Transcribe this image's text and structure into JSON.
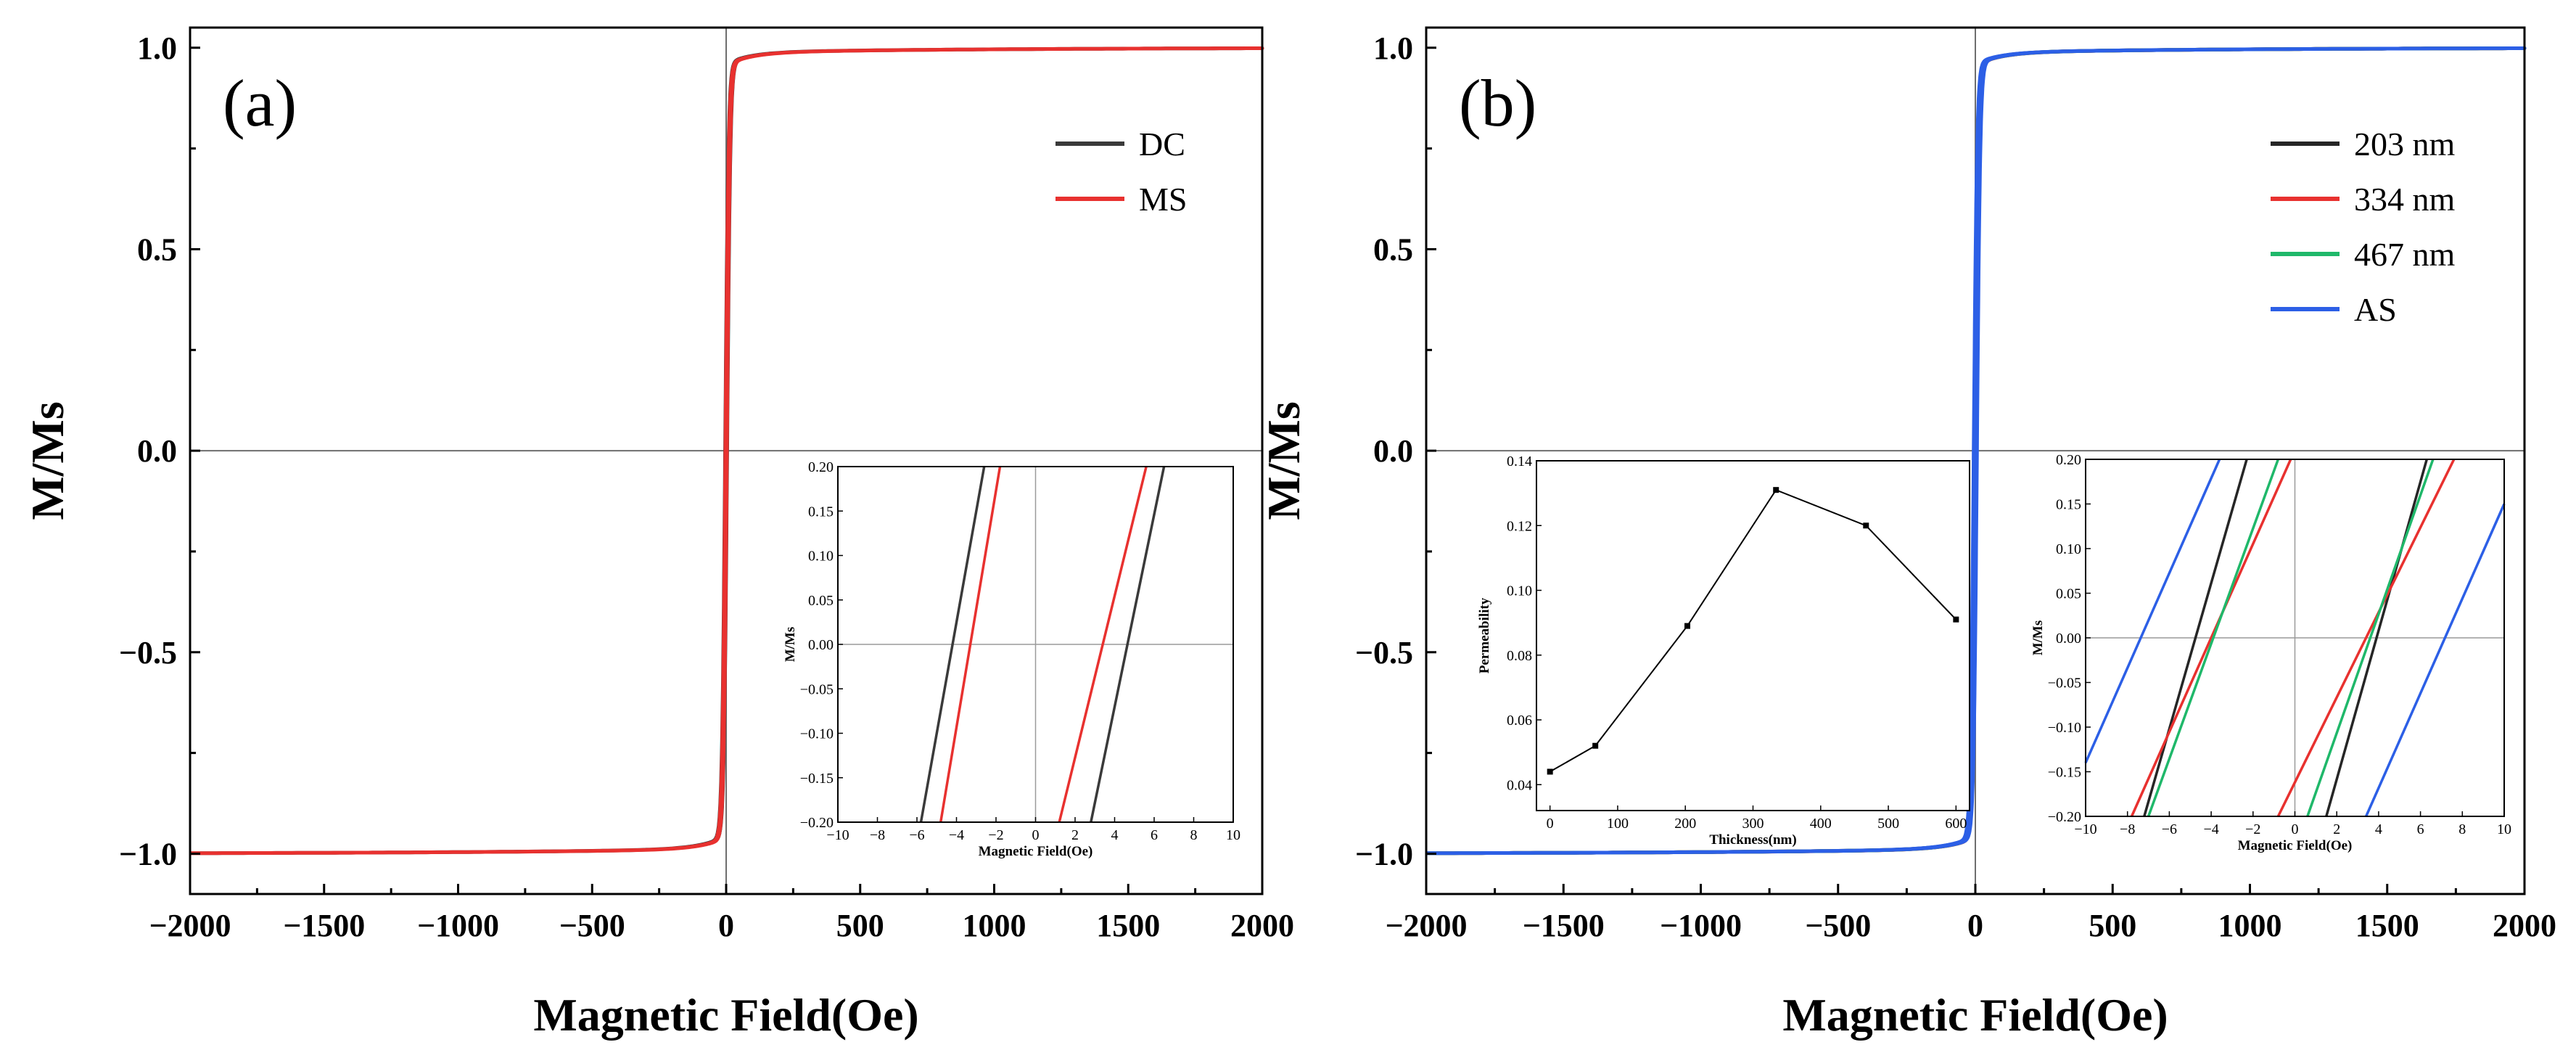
{
  "chart_data": [
    {
      "type": "line",
      "panel": "(a)",
      "xlabel": "Magnetic Field(Oe)",
      "ylabel": "M/Ms",
      "xlim": [
        -2000,
        2000
      ],
      "ylim": [
        -1.1,
        1.05
      ],
      "xticks": [
        -2000,
        -1500,
        -1000,
        -500,
        0,
        500,
        1000,
        1500,
        2000
      ],
      "xtick_labels": [
        "−2000",
        "−1500",
        "−1000",
        "−500",
        "0",
        "500",
        "1000",
        "1500",
        "2000"
      ],
      "yticks": [
        -1.0,
        -0.5,
        0.0,
        0.5,
        1.0
      ],
      "ytick_labels": [
        "−1.0",
        "−0.5",
        "0.0",
        "0.5",
        "1.0"
      ],
      "legend_position": "top-right",
      "series": [
        {
          "name": "DC",
          "color": "#3a3a3a",
          "hc": 3.8,
          "shift": 0.2
        },
        {
          "name": "MS",
          "color": "#e8312f",
          "hc": 2.9,
          "shift": -0.2
        }
      ],
      "inset": {
        "type": "line",
        "xlabel": "Magnetic Field(Oe)",
        "ylabel": "M/Ms",
        "xlim": [
          -10,
          10
        ],
        "ylim": [
          -0.2,
          0.2
        ],
        "xticks": [
          -10,
          -8,
          -6,
          -4,
          -2,
          0,
          2,
          4,
          6,
          8,
          10
        ],
        "xtick_labels": [
          "−10",
          "−8",
          "−6",
          "−4",
          "−2",
          "0",
          "2",
          "4",
          "6",
          "8",
          "10"
        ],
        "yticks": [
          -0.2,
          -0.15,
          -0.1,
          -0.05,
          0.0,
          0.05,
          0.1,
          0.15,
          0.2
        ],
        "ytick_labels": [
          "−0.20",
          "−0.15",
          "−0.10",
          "−0.05",
          "0.00",
          "0.05",
          "0.10",
          "0.15",
          "0.20"
        ],
        "series": [
          {
            "name": "DC",
            "color": "#3a3a3a",
            "segments": [
              [
                [
                  -5.8,
                  -0.2
                ],
                [
                  -2.6,
                  0.2
                ]
              ],
              [
                [
                  2.8,
                  -0.2
                ],
                [
                  6.5,
                  0.2
                ]
              ]
            ]
          },
          {
            "name": "MS",
            "color": "#e8312f",
            "segments": [
              [
                [
                  -4.8,
                  -0.2
                ],
                [
                  -1.8,
                  0.2
                ]
              ],
              [
                [
                  1.2,
                  -0.2
                ],
                [
                  5.6,
                  0.2
                ]
              ]
            ]
          }
        ]
      }
    },
    {
      "type": "line",
      "panel": "(b)",
      "xlabel": "Magnetic Field(Oe)",
      "ylabel": "M/Ms",
      "xlim": [
        -2000,
        2000
      ],
      "ylim": [
        -1.1,
        1.05
      ],
      "xticks": [
        -2000,
        -1500,
        -1000,
        -500,
        0,
        500,
        1000,
        1500,
        2000
      ],
      "xtick_labels": [
        "−2000",
        "−1500",
        "−1000",
        "−500",
        "0",
        "500",
        "1000",
        "1500",
        "2000"
      ],
      "yticks": [
        -1.0,
        -0.5,
        0.0,
        0.5,
        1.0
      ],
      "ytick_labels": [
        "−1.0",
        "−0.5",
        "0.0",
        "0.5",
        "1.0"
      ],
      "legend_position": "top-right",
      "series": [
        {
          "name": "203 nm",
          "color": "#262626",
          "hc": 4.0,
          "shift": 0.1
        },
        {
          "name": "334 nm",
          "color": "#e8312f",
          "hc": 4.2,
          "shift": -0.1
        },
        {
          "name": "467 nm",
          "color": "#1fb86a",
          "hc": 3.5,
          "shift": 0.0
        },
        {
          "name": "AS",
          "color": "#2c5fe6",
          "hc": 6.0,
          "shift": 0.2
        }
      ],
      "inset_left": {
        "type": "line",
        "xlabel": "Thickness(nm)",
        "ylabel": "Permeability",
        "xlim": [
          -20,
          620
        ],
        "ylim": [
          0.032,
          0.14
        ],
        "xticks": [
          0,
          100,
          200,
          300,
          400,
          500,
          600
        ],
        "xtick_labels": [
          "0",
          "100",
          "200",
          "300",
          "400",
          "500",
          "600"
        ],
        "yticks": [
          0.04,
          0.06,
          0.08,
          0.1,
          0.12,
          0.14
        ],
        "ytick_labels": [
          "0.04",
          "0.06",
          "0.08",
          "0.10",
          "0.12",
          "0.14"
        ],
        "x": [
          0,
          67,
          203,
          334,
          467,
          600
        ],
        "y": [
          0.044,
          0.052,
          0.089,
          0.131,
          0.12,
          0.091
        ]
      },
      "inset_right": {
        "type": "line",
        "xlabel": "Magnetic Field(Oe)",
        "ylabel": "M/Ms",
        "xlim": [
          -10,
          10
        ],
        "ylim": [
          -0.2,
          0.2
        ],
        "xticks": [
          -10,
          -8,
          -6,
          -4,
          -2,
          0,
          2,
          4,
          6,
          8,
          10
        ],
        "xtick_labels": [
          "−10",
          "−8",
          "−6",
          "−4",
          "−2",
          "0",
          "2",
          "4",
          "6",
          "8",
          "10"
        ],
        "yticks": [
          -0.2,
          -0.15,
          -0.1,
          -0.05,
          0.0,
          0.05,
          0.1,
          0.15,
          0.2
        ],
        "ytick_labels": [
          "−0.20",
          "−0.15",
          "−0.10",
          "−0.05",
          "0.00",
          "0.05",
          "0.10",
          "0.15",
          "0.20"
        ],
        "series": [
          {
            "name": "203 nm",
            "color": "#262626",
            "segments": [
              [
                [
                  -7.2,
                  -0.2
                ],
                [
                  -2.3,
                  0.2
                ]
              ],
              [
                [
                  1.5,
                  -0.2
                ],
                [
                  6.3,
                  0.2
                ]
              ]
            ]
          },
          {
            "name": "334 nm",
            "color": "#e8312f",
            "segments": [
              [
                [
                  -7.8,
                  -0.2
                ],
                [
                  -0.2,
                  0.2
                ]
              ],
              [
                [
                  -0.8,
                  -0.2
                ],
                [
                  7.6,
                  0.2
                ]
              ]
            ]
          },
          {
            "name": "467 nm",
            "color": "#1fb86a",
            "segments": [
              [
                [
                  -7.0,
                  -0.2
                ],
                [
                  -0.8,
                  0.2
                ]
              ],
              [
                [
                  0.6,
                  -0.2
                ],
                [
                  6.6,
                  0.2
                ]
              ]
            ]
          },
          {
            "name": "AS",
            "color": "#2c5fe6",
            "segments": [
              [
                [
                  -10.0,
                  -0.14
                ],
                [
                  -3.6,
                  0.2
                ]
              ],
              [
                [
                  3.4,
                  -0.2
                ],
                [
                  10.0,
                  0.15
                ]
              ]
            ]
          }
        ]
      }
    }
  ]
}
